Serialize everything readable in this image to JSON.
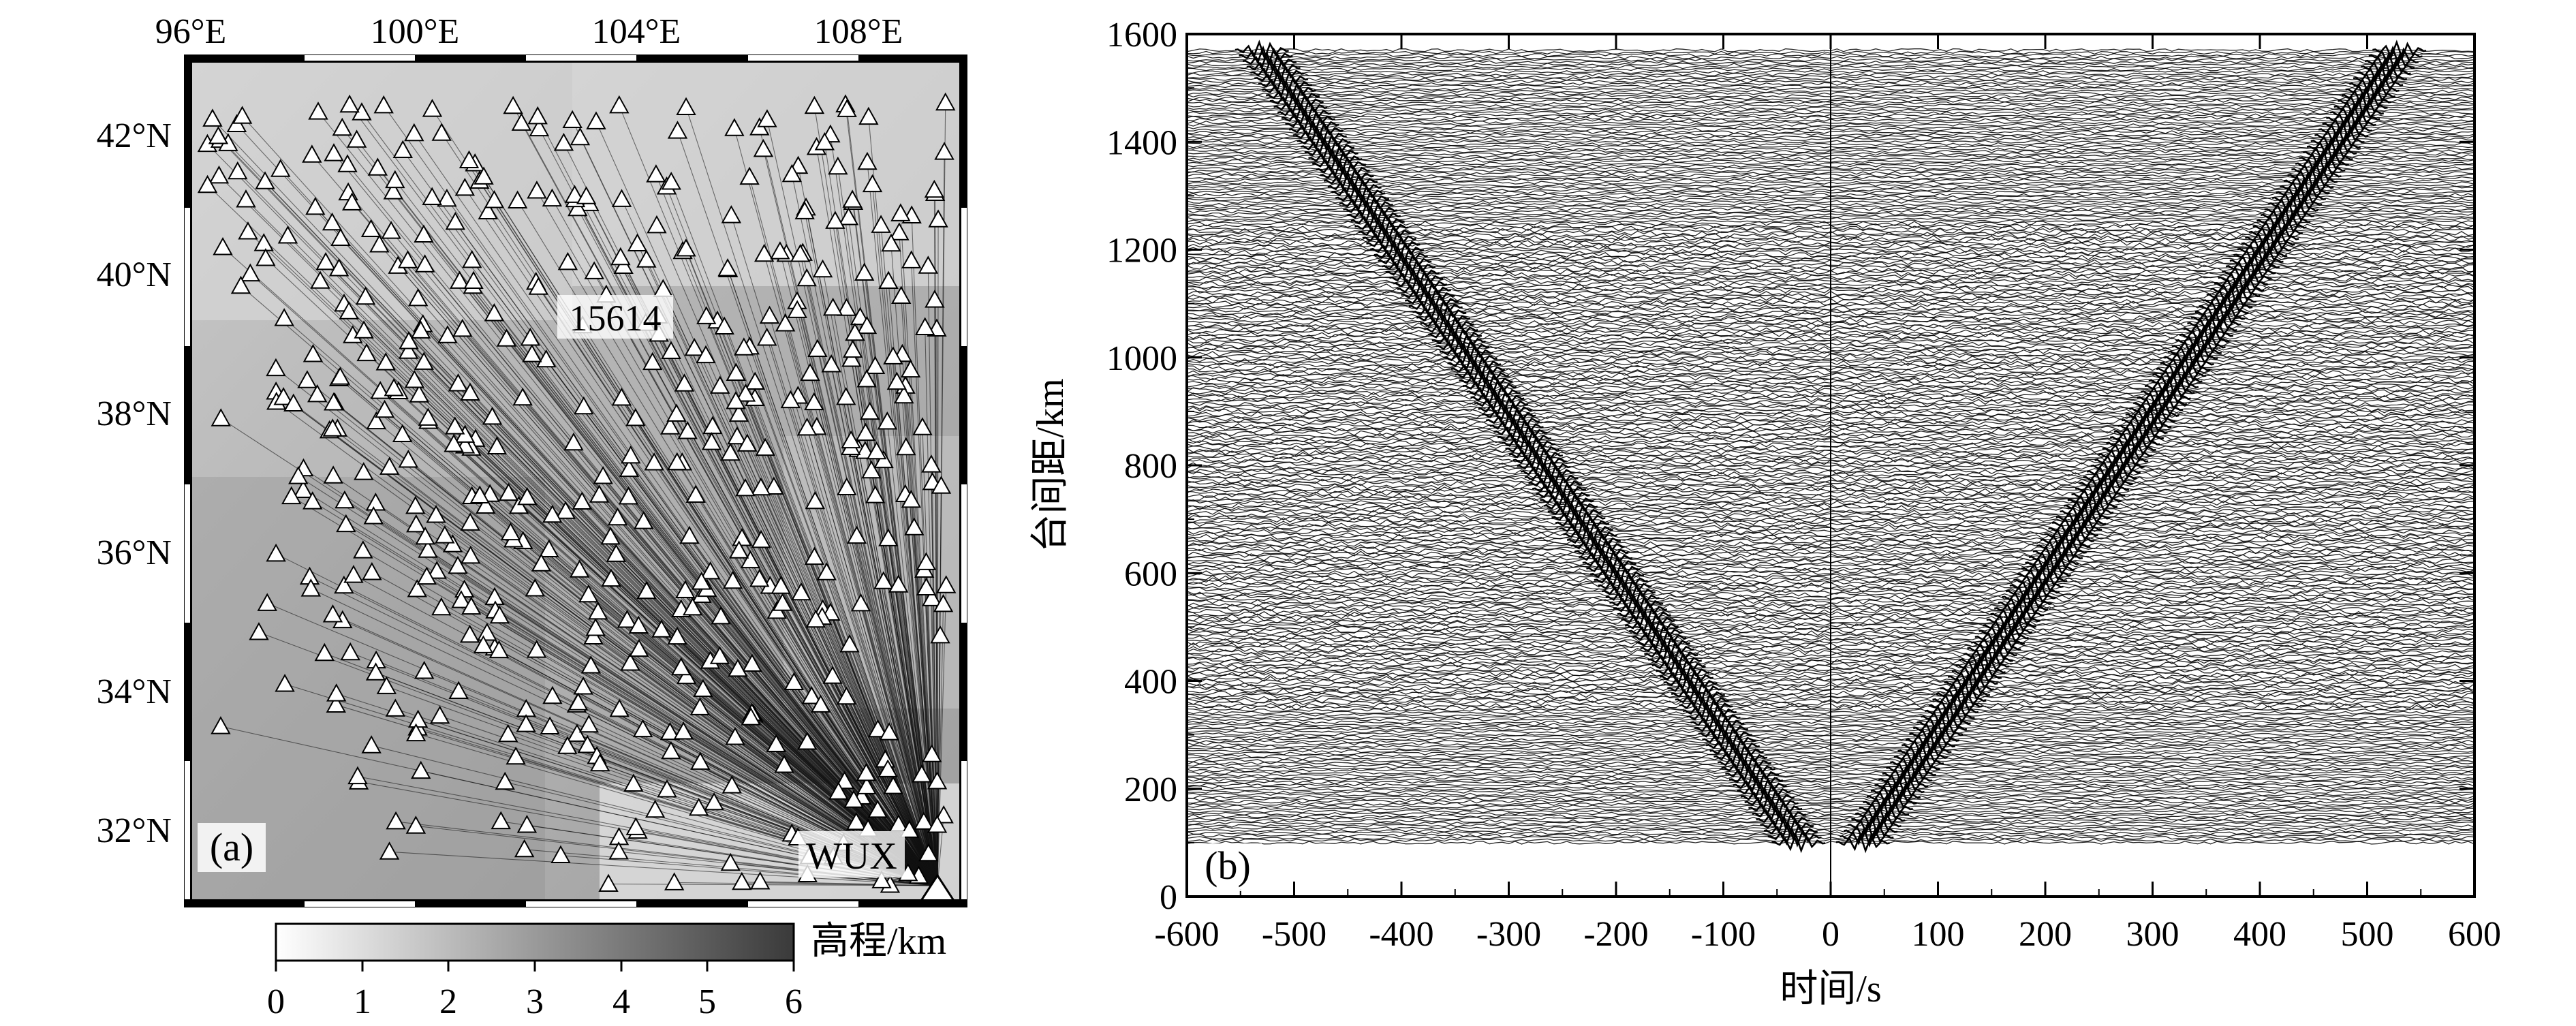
{
  "panel_a": {
    "label": "(a)",
    "lon_ticks": [
      "96°E",
      "100°E",
      "104°E",
      "108°E"
    ],
    "lat_ticks": [
      "42°N",
      "40°N",
      "38°N",
      "36°N",
      "34°N",
      "32°N"
    ],
    "station_label": "15614",
    "source_label": "WUX",
    "colorbar": {
      "title": "高程/km",
      "ticks": [
        "0",
        "1",
        "2",
        "3",
        "4",
        "5",
        "6"
      ]
    }
  },
  "chart_data": [
    {
      "type": "map",
      "panel": "(a)",
      "lon_range": [
        95.8,
        109.8
      ],
      "lat_range": [
        31.0,
        43.2
      ],
      "colorbar_range_km": [
        0,
        6
      ],
      "colorbar_title": "高程/km",
      "source_station": "WUX",
      "labeled_station": "15614"
    },
    {
      "type": "line",
      "panel": "(b)",
      "xlabel": "时间/s",
      "ylabel": "台间距/km",
      "xlim": [
        -600,
        600
      ],
      "ylim": [
        0,
        1600
      ],
      "xticks": [
        "-600",
        "-500",
        "-400",
        "-300",
        "-200",
        "-100",
        "0",
        "100",
        "200",
        "300",
        "400",
        "500",
        "600"
      ],
      "yticks": [
        "0",
        "200",
        "400",
        "600",
        "800",
        "1000",
        "1200",
        "1400",
        "1600"
      ],
      "distance_range_km": [
        100,
        1570
      ],
      "moveout": {
        "description": "V-shaped arrivals symmetric about 0 s",
        "points": [
          {
            "distance_km": 100,
            "time_s": 30
          },
          {
            "distance_km": 1570,
            "time_s": 530
          }
        ]
      }
    }
  ],
  "panel_b": {
    "label": "(b)"
  }
}
